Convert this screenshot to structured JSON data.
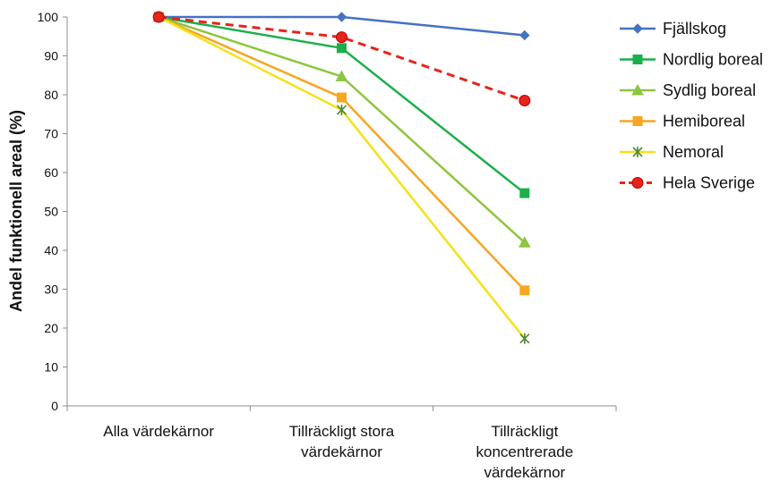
{
  "chart_data": {
    "type": "line",
    "title": "",
    "xlabel": "",
    "ylabel": "Andel funktionell areal (%)",
    "ylim": [
      0,
      100
    ],
    "yticks": [
      0,
      10,
      20,
      30,
      40,
      50,
      60,
      70,
      80,
      90,
      100
    ],
    "grid": false,
    "legend_position": "right",
    "categories": [
      [
        "Alla värdekärnor"
      ],
      [
        "Tillräckligt stora",
        "värdekärnor"
      ],
      [
        "Tillräckligt",
        "koncentrerade",
        "värdekärnor"
      ]
    ],
    "series": [
      {
        "name": "Fjällskog",
        "values": [
          100,
          100,
          95.3
        ],
        "color": "#4472C4",
        "marker": "diamond",
        "dash": false
      },
      {
        "name": "Nordlig boreal",
        "values": [
          100,
          92,
          54.7
        ],
        "color": "#1AAF4B",
        "marker": "square",
        "dash": false
      },
      {
        "name": "Sydlig boreal",
        "values": [
          100,
          84.7,
          42
        ],
        "color": "#8DC63F",
        "marker": "triangle",
        "dash": false
      },
      {
        "name": "Hemiboreal",
        "values": [
          100,
          79.3,
          29.7
        ],
        "color": "#F5A623",
        "marker": "square",
        "dash": false
      },
      {
        "name": "Nemoral",
        "values": [
          100,
          76.1,
          17.3
        ],
        "color": "#F5E11A",
        "marker": "star",
        "dash": false
      },
      {
        "name": "Hela Sverige",
        "values": [
          100,
          94.8,
          78.5
        ],
        "color": "#E4251B",
        "marker": "circle",
        "dash": true
      }
    ]
  }
}
